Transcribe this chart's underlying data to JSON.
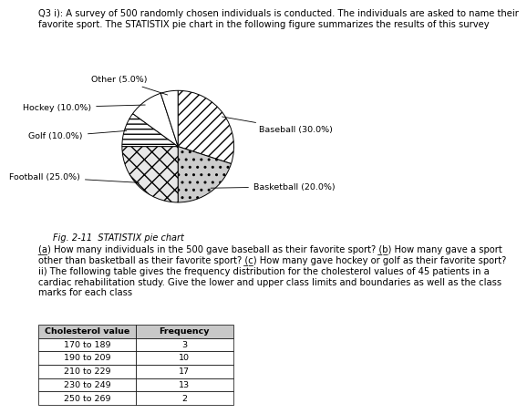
{
  "header_text": "Q3 i): A survey of 500 randomly chosen individuals is conducted. The individuals are asked to name their\nfavorite sport. The STATISTIX pie chart in the following figure summarizes the results of this survey",
  "pie_values": [
    30.0,
    20.0,
    25.0,
    10.0,
    10.0,
    5.0
  ],
  "pie_label_texts": [
    "Baseball (30.0%)",
    "Basketball (20.0%)",
    "Football (25.0%)",
    "Golf (10.0%)",
    "Hockey (10.0%)",
    "Other (5.0%)"
  ],
  "fig_caption": "Fig. 2-11  STATISTIX pie chart",
  "table_headers": [
    "Cholesterol value",
    "Frequency"
  ],
  "table_rows": [
    [
      "170 to 189",
      "3"
    ],
    [
      "190 to 209",
      "10"
    ],
    [
      "210 to 229",
      "17"
    ],
    [
      "230 to 249",
      "13"
    ],
    [
      "250 to 269",
      "2"
    ]
  ],
  "hatch_patterns": [
    "///",
    "..",
    "xx",
    "---",
    "",
    ""
  ],
  "pie_colors": [
    "white",
    "lightgray",
    "white",
    "white",
    "white",
    "white"
  ],
  "background": "white",
  "font_size_header": 7.2,
  "font_size_labels": 6.8,
  "font_size_caption": 7.0,
  "font_size_question": 7.2,
  "font_size_table": 6.8
}
